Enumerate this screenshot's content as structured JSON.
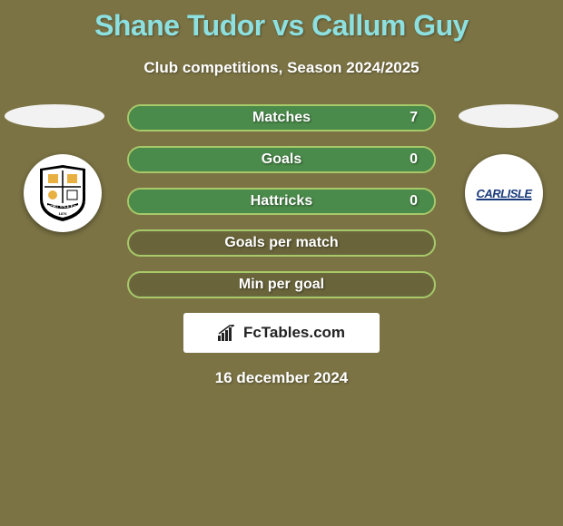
{
  "title": "Shane Tudor vs Callum Guy",
  "subtitle": "Club competitions, Season 2024/2025",
  "date": "16 december 2024",
  "brand": "FcTables.com",
  "colors": {
    "background": "#7b7344",
    "title": "#8de0e0",
    "bar_base": "#69643a",
    "bar_border": "#a7c96a",
    "bar_fill": "#4a8a4a",
    "text": "#ffffff"
  },
  "left_team": {
    "name": "Port Vale",
    "badge_bg": "#ffffff",
    "badge_text": "PORT VALE F.C.",
    "badge_year": "1876"
  },
  "right_team": {
    "name": "Carlisle",
    "badge_bg": "#ffffff",
    "badge_text": "CARLISLE"
  },
  "stats": [
    {
      "label": "Matches",
      "value": "7",
      "fill_pct": 100
    },
    {
      "label": "Goals",
      "value": "0",
      "fill_pct": 100
    },
    {
      "label": "Hattricks",
      "value": "0",
      "fill_pct": 100
    },
    {
      "label": "Goals per match",
      "value": "",
      "fill_pct": 0
    },
    {
      "label": "Min per goal",
      "value": "",
      "fill_pct": 0
    }
  ]
}
